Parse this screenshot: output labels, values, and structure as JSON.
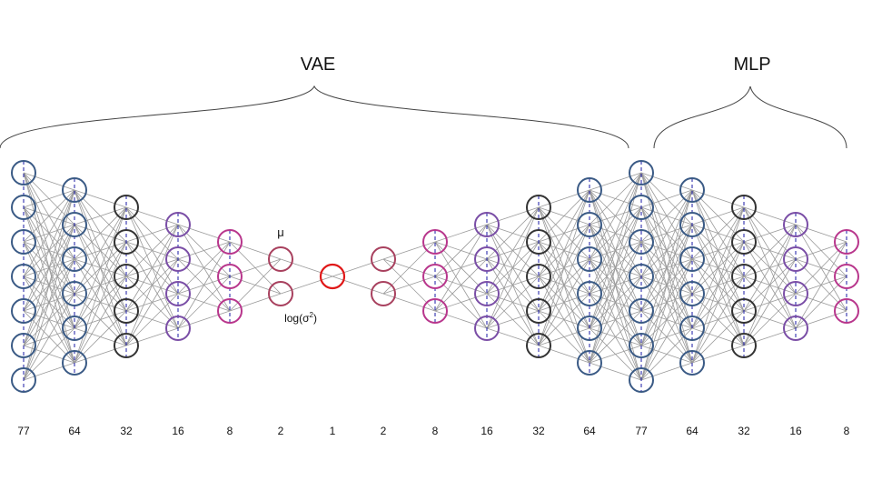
{
  "diagram": {
    "brace_labels": {
      "vae": "VAE",
      "mlp": "MLP"
    },
    "latent_labels": {
      "mu": "μ",
      "logvar_prefix": "log(σ",
      "logvar_exp": "2",
      "logvar_suffix": ")"
    },
    "colors": {
      "edge": "#9a9a9a",
      "dash": "#1a1aa6",
      "blue": "#3a5a85",
      "dark": "#333333",
      "purple": "#7a4ea6",
      "magenta": "#b8368c",
      "rose": "#a8405e",
      "red": "#e01818",
      "brace": "#444444"
    },
    "layers": [
      {
        "label": "77",
        "color": "blue"
      },
      {
        "label": "64",
        "color": "blue"
      },
      {
        "label": "32",
        "color": "dark"
      },
      {
        "label": "16",
        "color": "purple"
      },
      {
        "label": "8",
        "color": "magenta"
      },
      {
        "label": "2",
        "color": "rose"
      },
      {
        "label": "1",
        "color": "red"
      },
      {
        "label": "2",
        "color": "rose"
      },
      {
        "label": "8",
        "color": "magenta"
      },
      {
        "label": "16",
        "color": "purple"
      },
      {
        "label": "32",
        "color": "dark"
      },
      {
        "label": "64",
        "color": "blue"
      },
      {
        "label": "77",
        "color": "blue"
      },
      {
        "label": "64",
        "color": "blue"
      },
      {
        "label": "32",
        "color": "dark"
      },
      {
        "label": "16",
        "color": "purple"
      },
      {
        "label": "8",
        "color": "magenta"
      }
    ]
  }
}
